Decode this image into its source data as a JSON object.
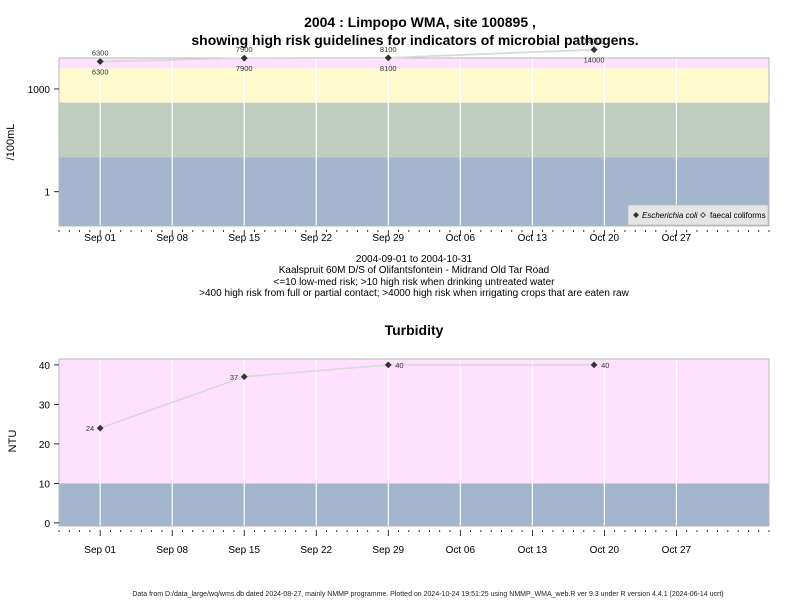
{
  "chart_data": [
    {
      "type": "line",
      "title": "2004 : Limpopo WMA, site 100895 ,",
      "title2": "showing high risk guidelines for indicators of microbial pathogens.",
      "ylabel": "/100mL",
      "y_scale": "log10",
      "ylim": [
        0.1,
        8000
      ],
      "xlim": [
        "2004-08-28",
        "2004-11-05"
      ],
      "x_ticks": [
        "Sep 01",
        "Sep 08",
        "Sep 15",
        "Sep 22",
        "Sep 29",
        "Oct 06",
        "Oct 13",
        "Oct 20",
        "Oct 27"
      ],
      "x_tick_dates": [
        "2004-09-01",
        "2004-09-08",
        "2004-09-15",
        "2004-09-22",
        "2004-09-29",
        "2004-10-06",
        "2004-10-13",
        "2004-10-20",
        "2004-10-27"
      ],
      "y_ticks": [
        {
          "value": 1,
          "label": "1"
        },
        {
          "value": 1000,
          "label": "1000"
        }
      ],
      "bands": [
        {
          "from": 0.1,
          "to": 10,
          "color": "#a2b5cd"
        },
        {
          "from": 10,
          "to": 400,
          "color": "#c1cdc1"
        },
        {
          "from": 400,
          "to": 4000,
          "color": "#fffacd"
        },
        {
          "from": 4000,
          "to": 8000,
          "color": "#ffe1ff"
        }
      ],
      "series": [
        {
          "name": "Escherichia coli",
          "marker": "filled-diamond",
          "points": [
            {
              "date": "2004-09-01",
              "value": 6300
            },
            {
              "date": "2004-09-15",
              "value": 7900
            },
            {
              "date": "2004-09-29",
              "value": 8100
            },
            {
              "date": "2004-10-19",
              "value": 14000
            }
          ]
        },
        {
          "name": "faecal coliforms",
          "marker": "open-diamond",
          "points": [
            {
              "date": "2004-09-01",
              "value": 6300
            },
            {
              "date": "2004-09-15",
              "value": 7900
            },
            {
              "date": "2004-09-29",
              "value": 8100
            },
            {
              "date": "2004-10-19",
              "value": 14000
            }
          ]
        }
      ],
      "legend": {
        "position": "bottom-right"
      },
      "captions": [
        "2004-09-01 to 2004-10-31",
        "Kaalspruit 60M D/S of Olifantsfontein - Midrand Old Tar Road",
        "<=10 low-med risk; >10 high risk when drinking untreated water",
        ">400 high risk from full or partial contact; >4000 high risk when irrigating crops that are eaten raw"
      ]
    },
    {
      "type": "line",
      "title": "Turbidity",
      "ylabel": "NTU",
      "ylim": [
        -0.8,
        41.5
      ],
      "xlim": [
        "2004-08-28",
        "2004-11-05"
      ],
      "x_ticks": [
        "Sep 01",
        "Sep 08",
        "Sep 15",
        "Sep 22",
        "Sep 29",
        "Oct 06",
        "Oct 13",
        "Oct 20",
        "Oct 27"
      ],
      "x_tick_dates": [
        "2004-09-01",
        "2004-09-08",
        "2004-09-15",
        "2004-09-22",
        "2004-09-29",
        "2004-10-06",
        "2004-10-13",
        "2004-10-20",
        "2004-10-27"
      ],
      "y_ticks": [
        {
          "value": 0,
          "label": "0"
        },
        {
          "value": 10,
          "label": "10"
        },
        {
          "value": 20,
          "label": "20"
        },
        {
          "value": 30,
          "label": "30"
        },
        {
          "value": 40,
          "label": "40"
        }
      ],
      "bands": [
        {
          "from": -0.8,
          "to": 10,
          "color": "#a2b5cd"
        },
        {
          "from": 10,
          "to": 41.5,
          "color": "#ffe1ff"
        }
      ],
      "series": [
        {
          "marker": "filled-diamond",
          "points": [
            {
              "date": "2004-09-01",
              "value": 24,
              "label": "24"
            },
            {
              "date": "2004-09-15",
              "value": 37,
              "label": "37"
            },
            {
              "date": "2004-09-29",
              "value": 40,
              "label": "40"
            },
            {
              "date": "2004-10-19",
              "value": 40,
              "label": "40"
            }
          ]
        }
      ]
    }
  ],
  "footer": "Data from D:/data_large/wq/wms.db dated 2024-08-27, mainly NMMP programme. Plotted on 2024-10-24 19:51:25 using NMMP_WMA_web.R ver 9.3 under R version 4.4.1 (2024-06-14 ucrt)"
}
